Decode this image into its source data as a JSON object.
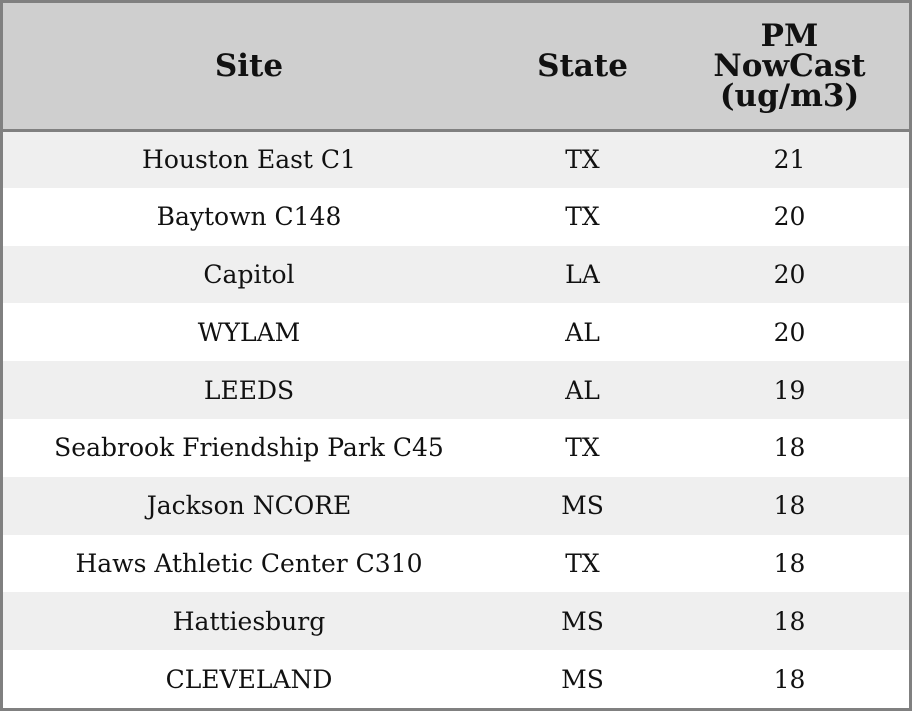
{
  "chart_data": {
    "type": "table",
    "columns": [
      "Site",
      "State",
      "PM NowCast (ug/m3)"
    ],
    "header_lines": {
      "site": [
        "Site"
      ],
      "state": [
        "State"
      ],
      "pm": [
        "PM",
        "NowCast",
        "(ug/m3)"
      ]
    },
    "rows": [
      {
        "site": "Houston East C1",
        "state": "TX",
        "pm": 21
      },
      {
        "site": "Baytown C148",
        "state": "TX",
        "pm": 20
      },
      {
        "site": "Capitol",
        "state": "LA",
        "pm": 20
      },
      {
        "site": "WYLAM",
        "state": "AL",
        "pm": 20
      },
      {
        "site": "LEEDS",
        "state": "AL",
        "pm": 19
      },
      {
        "site": "Seabrook Friendship Park C45",
        "state": "TX",
        "pm": 18
      },
      {
        "site": "Jackson NCORE",
        "state": "MS",
        "pm": 18
      },
      {
        "site": "Haws Athletic Center C310",
        "state": "TX",
        "pm": 18
      },
      {
        "site": "Hattiesburg",
        "state": "MS",
        "pm": 18
      },
      {
        "site": "CLEVELAND",
        "state": "MS",
        "pm": 18
      }
    ]
  },
  "colors": {
    "header_background": "#cfcfcf",
    "border": "#808080",
    "row_odd_background": "#efefef",
    "row_even_background": "#ffffff",
    "text": "#111111"
  }
}
